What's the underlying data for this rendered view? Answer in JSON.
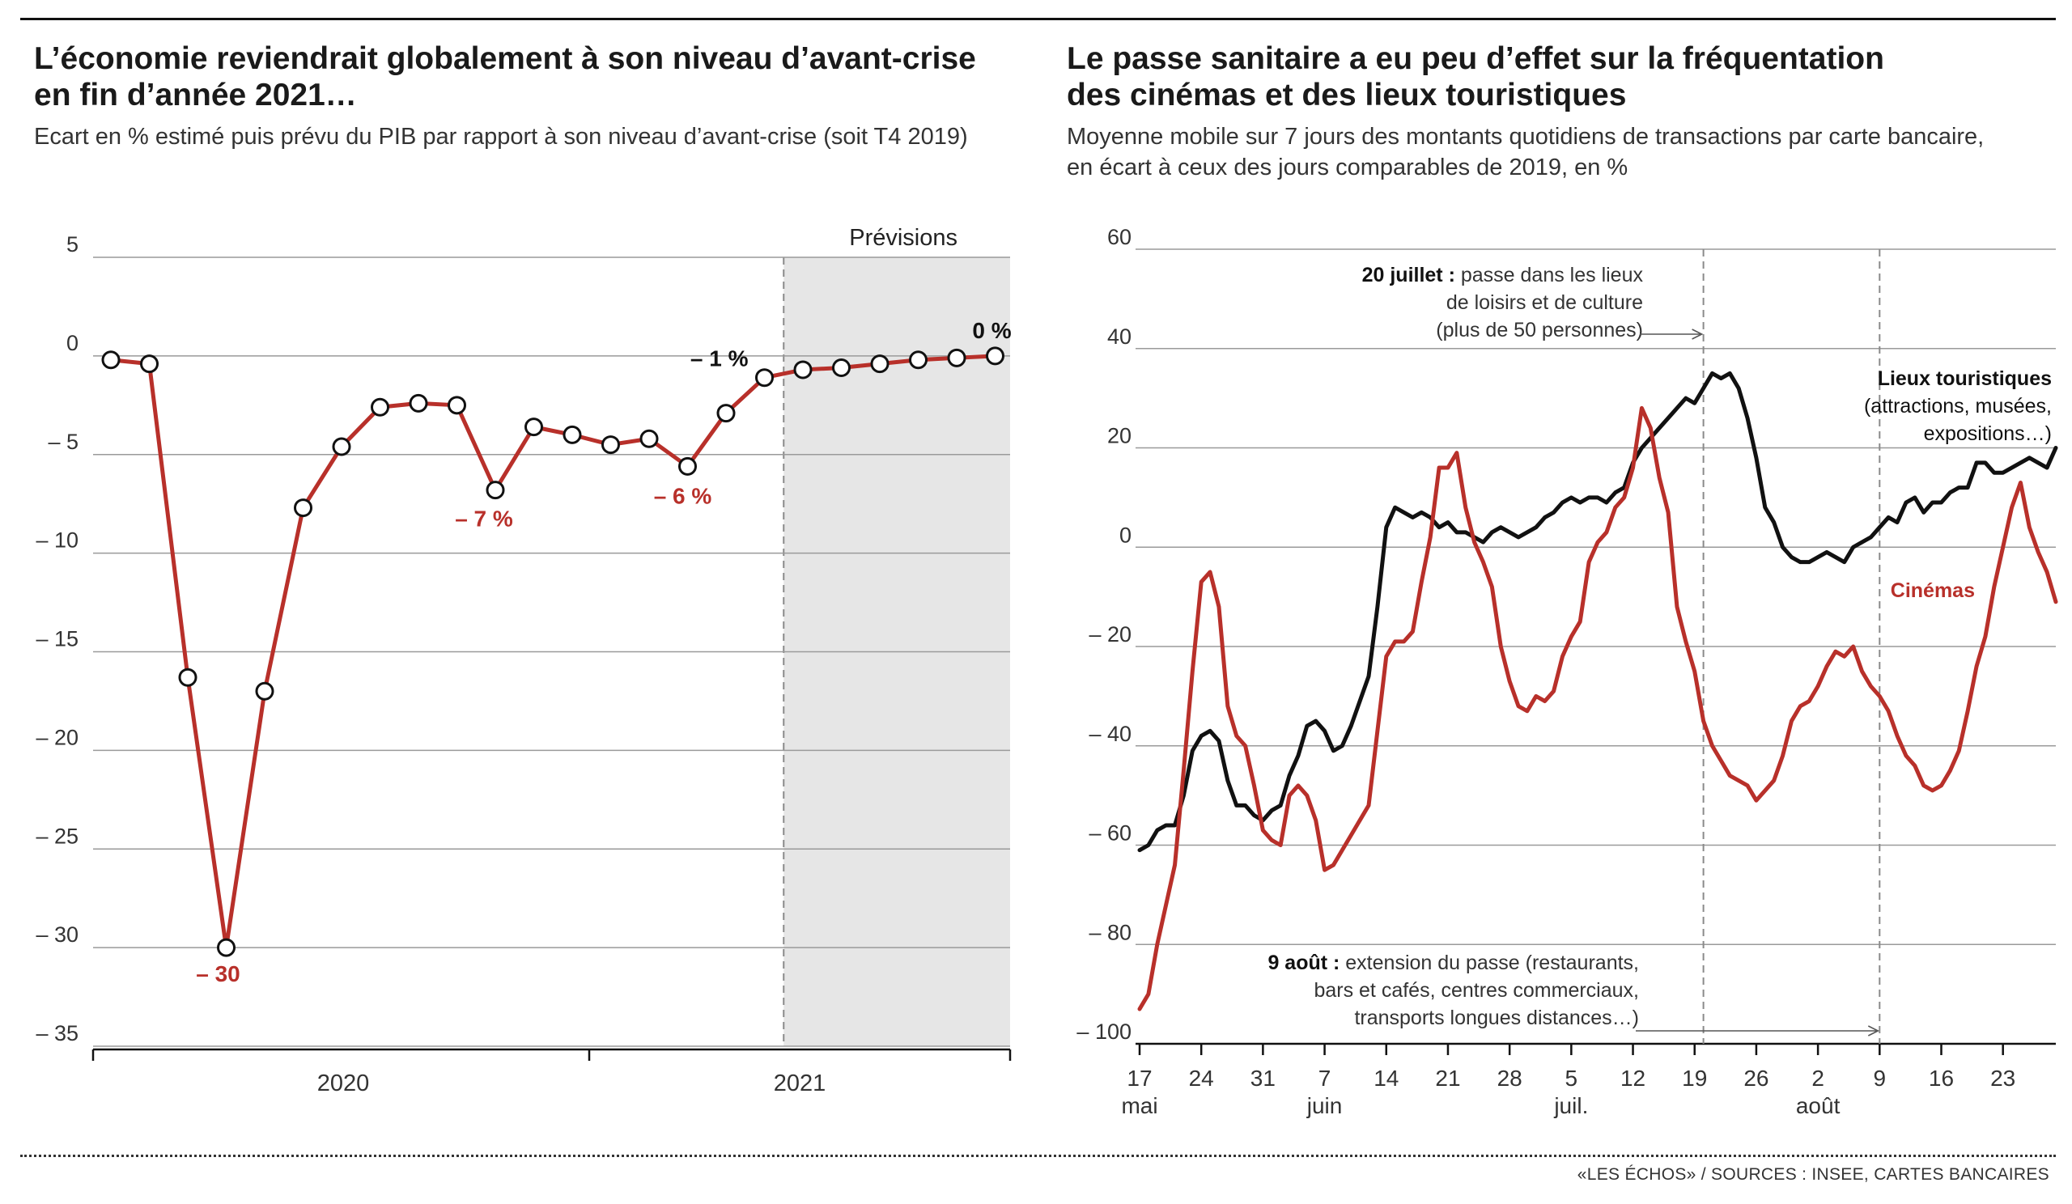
{
  "left": {
    "title": "L’économie reviendrait globalement à son niveau d’avant-crise\nen fin d’année 2021…",
    "subtitle": "Ecart en % estimé puis prévu du PIB par rapport à son niveau d’avant-crise (soit T4 2019)"
  },
  "right": {
    "title": "Le passe sanitaire a eu peu d’effet sur la fréquentation\ndes cinémas et des lieux touristiques",
    "subtitle": "Moyenne mobile sur 7 jours des montants quotidiens de transactions par carte bancaire,\nen écart à ceux des jours comparables de 2019, en %"
  },
  "source": "«LES ÉCHOS» / SOURCES : INSEE, CARTES BANCAIRES",
  "colors": {
    "red": "#b8302a",
    "black": "#111111",
    "grid": "#9a9a9a",
    "forecast_bg": "#e6e6e6"
  },
  "chart_data": [
    {
      "type": "line",
      "ylim": [
        -35,
        5
      ],
      "yticks": [
        5,
        0,
        -5,
        -10,
        -15,
        -20,
        -25,
        -30,
        -35
      ],
      "ytick_labels": [
        "5",
        "0",
        "– 5",
        "– 10",
        "– 15",
        "– 20",
        "– 25",
        "– 30",
        "– 35"
      ],
      "xtick_labels": [
        "2020",
        "2021"
      ],
      "forecast_label": "Prévisions",
      "forecast_start_index": 18,
      "grid": true,
      "series": [
        {
          "color": "#b8302a",
          "values": [
            -0.2,
            -0.4,
            -16.3,
            -30,
            -17,
            -7.7,
            -4.6,
            -2.6,
            -2.4,
            -2.5,
            -6.8,
            -3.6,
            -4,
            -4.5,
            -4.2,
            -5.6,
            -2.9,
            -1.1,
            -0.7,
            -0.6,
            -0.4,
            -0.2,
            -0.1,
            0
          ]
        }
      ],
      "annotations": [
        {
          "text": "– 30",
          "index": 3
        },
        {
          "text": "– 7 %",
          "index": 10
        },
        {
          "text": "– 6 %",
          "index": 15
        },
        {
          "text": "– 1 %",
          "index": 17
        },
        {
          "text": "0 %",
          "index": 23
        }
      ]
    },
    {
      "type": "line",
      "ylim": [
        -100,
        60
      ],
      "yticks": [
        60,
        40,
        20,
        0,
        -20,
        -40,
        -60,
        -80,
        -100
      ],
      "ytick_labels": [
        "60",
        "40",
        "20",
        "0",
        "– 20",
        "– 40",
        "– 60",
        "– 80",
        "– 100"
      ],
      "x_start_label": "17 mai",
      "x_end_day": 104,
      "xticks": [
        {
          "day": 0,
          "label": "17",
          "sub": "mai"
        },
        {
          "day": 7,
          "label": "24",
          "sub": ""
        },
        {
          "day": 14,
          "label": "31",
          "sub": ""
        },
        {
          "day": 21,
          "label": "7",
          "sub": "juin"
        },
        {
          "day": 28,
          "label": "14",
          "sub": ""
        },
        {
          "day": 35,
          "label": "21",
          "sub": ""
        },
        {
          "day": 42,
          "label": "28",
          "sub": ""
        },
        {
          "day": 49,
          "label": "5",
          "sub": "juil."
        },
        {
          "day": 56,
          "label": "12",
          "sub": ""
        },
        {
          "day": 63,
          "label": "19",
          "sub": ""
        },
        {
          "day": 70,
          "label": "26",
          "sub": ""
        },
        {
          "day": 77,
          "label": "2",
          "sub": "août"
        },
        {
          "day": 84,
          "label": "9",
          "sub": ""
        },
        {
          "day": 91,
          "label": "16",
          "sub": ""
        },
        {
          "day": 98,
          "label": "23",
          "sub": ""
        }
      ],
      "grid": true,
      "events": [
        {
          "day": 64,
          "bold": "20 juillet :",
          "text": [
            "passe dans les lieux",
            "de loisirs et de culture",
            "(plus de 50 personnes)"
          ]
        },
        {
          "day": 84,
          "bold": "9 août :",
          "text": [
            "extension du passe (restaurants,",
            "bars et cafés, centres commerciaux,",
            "transports longues distances…)"
          ]
        }
      ],
      "series": [
        {
          "name": "Lieux touristiques",
          "label_lines": [
            "Lieux touristiques",
            "(attractions, musées,",
            "expositions…)"
          ],
          "color": "#111111",
          "points": [
            [
              0,
              -61
            ],
            [
              1,
              -60
            ],
            [
              2,
              -57
            ],
            [
              3,
              -56
            ],
            [
              4,
              -56
            ],
            [
              5,
              -50
            ],
            [
              6,
              -41
            ],
            [
              7,
              -38
            ],
            [
              8,
              -37
            ],
            [
              9,
              -39
            ],
            [
              10,
              -47
            ],
            [
              11,
              -52
            ],
            [
              12,
              -52
            ],
            [
              13,
              -54
            ],
            [
              14,
              -55
            ],
            [
              15,
              -53
            ],
            [
              16,
              -52
            ],
            [
              17,
              -46
            ],
            [
              18,
              -42
            ],
            [
              19,
              -36
            ],
            [
              20,
              -35
            ],
            [
              21,
              -37
            ],
            [
              22,
              -41
            ],
            [
              23,
              -40
            ],
            [
              24,
              -36
            ],
            [
              25,
              -31
            ],
            [
              26,
              -26
            ],
            [
              27,
              -12
            ],
            [
              28,
              4
            ],
            [
              29,
              8
            ],
            [
              30,
              7
            ],
            [
              31,
              6
            ],
            [
              32,
              7
            ],
            [
              33,
              6
            ],
            [
              34,
              4
            ],
            [
              35,
              5
            ],
            [
              36,
              3
            ],
            [
              37,
              3
            ],
            [
              38,
              2
            ],
            [
              39,
              1
            ],
            [
              40,
              3
            ],
            [
              41,
              4
            ],
            [
              42,
              3
            ],
            [
              43,
              2
            ],
            [
              44,
              3
            ],
            [
              45,
              4
            ],
            [
              46,
              6
            ],
            [
              47,
              7
            ],
            [
              48,
              9
            ],
            [
              49,
              10
            ],
            [
              50,
              9
            ],
            [
              51,
              10
            ],
            [
              52,
              10
            ],
            [
              53,
              9
            ],
            [
              54,
              11
            ],
            [
              55,
              12
            ],
            [
              56,
              17
            ],
            [
              57,
              20
            ],
            [
              58,
              22
            ],
            [
              59,
              24
            ],
            [
              60,
              26
            ],
            [
              61,
              28
            ],
            [
              62,
              30
            ],
            [
              63,
              29
            ],
            [
              64,
              32
            ],
            [
              65,
              35
            ],
            [
              66,
              34
            ],
            [
              67,
              35
            ],
            [
              68,
              32
            ],
            [
              69,
              26
            ],
            [
              70,
              18
            ],
            [
              71,
              8
            ],
            [
              72,
              5
            ],
            [
              73,
              0
            ],
            [
              74,
              -2
            ],
            [
              75,
              -3
            ],
            [
              76,
              -3
            ],
            [
              77,
              -2
            ],
            [
              78,
              -1
            ],
            [
              79,
              -2
            ],
            [
              80,
              -3
            ],
            [
              81,
              0
            ],
            [
              82,
              1
            ],
            [
              83,
              2
            ],
            [
              84,
              4
            ],
            [
              85,
              6
            ],
            [
              86,
              5
            ],
            [
              87,
              9
            ],
            [
              88,
              10
            ],
            [
              89,
              7
            ],
            [
              90,
              9
            ],
            [
              91,
              9
            ],
            [
              92,
              11
            ],
            [
              93,
              12
            ],
            [
              94,
              12
            ],
            [
              95,
              17
            ],
            [
              96,
              17
            ],
            [
              97,
              15
            ],
            [
              98,
              15
            ],
            [
              99,
              16
            ],
            [
              100,
              17
            ],
            [
              101,
              18
            ],
            [
              102,
              17
            ],
            [
              103,
              16
            ],
            [
              104,
              20
            ]
          ]
        },
        {
          "name": "Cinémas",
          "label_lines": [
            "Cinémas"
          ],
          "color": "#b8302a",
          "points": [
            [
              0,
              -93
            ],
            [
              1,
              -90
            ],
            [
              2,
              -80
            ],
            [
              3,
              -72
            ],
            [
              4,
              -64
            ],
            [
              5,
              -45
            ],
            [
              6,
              -25
            ],
            [
              7,
              -7
            ],
            [
              8,
              -5
            ],
            [
              9,
              -12
            ],
            [
              10,
              -32
            ],
            [
              11,
              -38
            ],
            [
              12,
              -40
            ],
            [
              13,
              -48
            ],
            [
              14,
              -57
            ],
            [
              15,
              -59
            ],
            [
              16,
              -60
            ],
            [
              17,
              -50
            ],
            [
              18,
              -48
            ],
            [
              19,
              -50
            ],
            [
              20,
              -55
            ],
            [
              21,
              -65
            ],
            [
              22,
              -64
            ],
            [
              23,
              -61
            ],
            [
              24,
              -58
            ],
            [
              25,
              -55
            ],
            [
              26,
              -52
            ],
            [
              27,
              -37
            ],
            [
              28,
              -22
            ],
            [
              29,
              -19
            ],
            [
              30,
              -19
            ],
            [
              31,
              -17
            ],
            [
              32,
              -7
            ],
            [
              33,
              2
            ],
            [
              34,
              16
            ],
            [
              35,
              16
            ],
            [
              36,
              19
            ],
            [
              37,
              8
            ],
            [
              38,
              1
            ],
            [
              39,
              -3
            ],
            [
              40,
              -8
            ],
            [
              41,
              -20
            ],
            [
              42,
              -27
            ],
            [
              43,
              -32
            ],
            [
              44,
              -33
            ],
            [
              45,
              -30
            ],
            [
              46,
              -31
            ],
            [
              47,
              -29
            ],
            [
              48,
              -22
            ],
            [
              49,
              -18
            ],
            [
              50,
              -15
            ],
            [
              51,
              -3
            ],
            [
              52,
              1
            ],
            [
              53,
              3
            ],
            [
              54,
              8
            ],
            [
              55,
              10
            ],
            [
              56,
              16
            ],
            [
              57,
              28
            ],
            [
              58,
              24
            ],
            [
              59,
              14
            ],
            [
              60,
              7
            ],
            [
              61,
              -12
            ],
            [
              62,
              -19
            ],
            [
              63,
              -25
            ],
            [
              64,
              -35
            ],
            [
              65,
              -40
            ],
            [
              66,
              -43
            ],
            [
              67,
              -46
            ],
            [
              68,
              -47
            ],
            [
              69,
              -48
            ],
            [
              70,
              -51
            ],
            [
              71,
              -49
            ],
            [
              72,
              -47
            ],
            [
              73,
              -42
            ],
            [
              74,
              -35
            ],
            [
              75,
              -32
            ],
            [
              76,
              -31
            ],
            [
              77,
              -28
            ],
            [
              78,
              -24
            ],
            [
              79,
              -21
            ],
            [
              80,
              -22
            ],
            [
              81,
              -20
            ],
            [
              82,
              -25
            ],
            [
              83,
              -28
            ],
            [
              84,
              -30
            ],
            [
              85,
              -33
            ],
            [
              86,
              -38
            ],
            [
              87,
              -42
            ],
            [
              88,
              -44
            ],
            [
              89,
              -48
            ],
            [
              90,
              -49
            ],
            [
              91,
              -48
            ],
            [
              92,
              -45
            ],
            [
              93,
              -41
            ],
            [
              94,
              -33
            ],
            [
              95,
              -24
            ],
            [
              96,
              -18
            ],
            [
              97,
              -8
            ],
            [
              98,
              0
            ],
            [
              99,
              8
            ],
            [
              100,
              13
            ],
            [
              101,
              4
            ],
            [
              102,
              -1
            ],
            [
              103,
              -5
            ],
            [
              104,
              -11
            ]
          ]
        }
      ]
    }
  ]
}
